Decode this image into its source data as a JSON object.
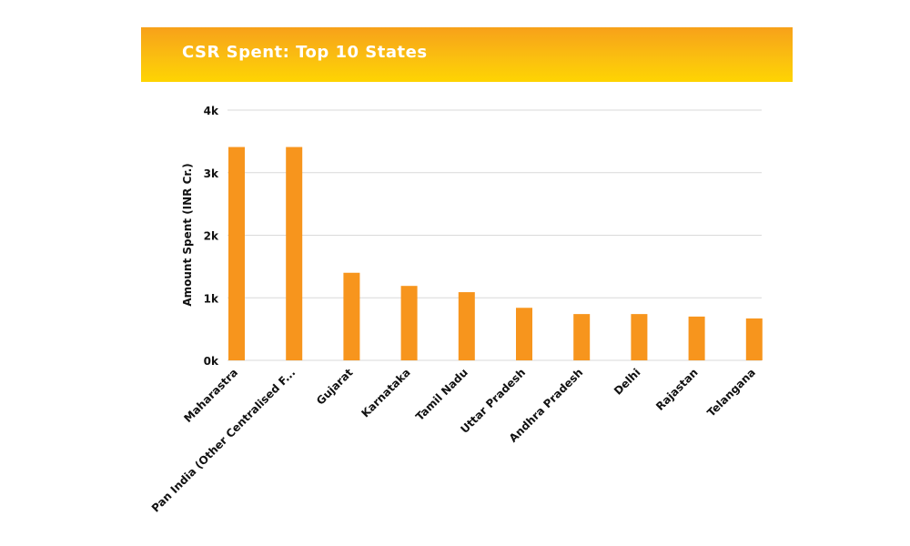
{
  "header": {
    "title": "CSR Spent: Top 10 States"
  },
  "chart_data": {
    "type": "bar",
    "title": "CSR Spent: Top 10 States",
    "xlabel": "",
    "ylabel": "Amount Spent (INR Cr.)",
    "ylim": [
      0,
      4000
    ],
    "yticks": [
      "0k",
      "1k",
      "2k",
      "3k",
      "4k"
    ],
    "grid": true,
    "bar_color": "#f7951d",
    "categories": [
      "Maharastra",
      "Pan India (Other Centralised F...",
      "Gujarat",
      "Karnataka",
      "Tamil Nadu",
      "Uttar Pradesh",
      "Andhra Pradesh",
      "Delhi",
      "Rajastan",
      "Telangana"
    ],
    "values": [
      3410,
      3410,
      1400,
      1190,
      1090,
      840,
      740,
      740,
      700,
      670
    ]
  }
}
